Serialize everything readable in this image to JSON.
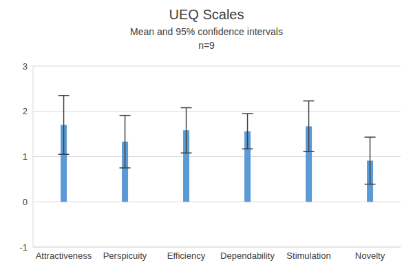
{
  "chart_data": {
    "type": "bar",
    "title": "UEQ Scales",
    "subtitle": "Mean and 95% confidence intervals",
    "annotation": "n=9",
    "categories": [
      "Attractiveness",
      "Perspicuity",
      "Efficiency",
      "Dependability",
      "Stimulation",
      "Novelty"
    ],
    "values": [
      1.7,
      1.33,
      1.58,
      1.56,
      1.67,
      0.91
    ],
    "errors": [
      0.65,
      0.58,
      0.5,
      0.39,
      0.56,
      0.52
    ],
    "color": "#5b9bd5",
    "ylim": [
      -1,
      3
    ],
    "yticks": [
      -1,
      0,
      1,
      2,
      3
    ],
    "grid": true
  }
}
